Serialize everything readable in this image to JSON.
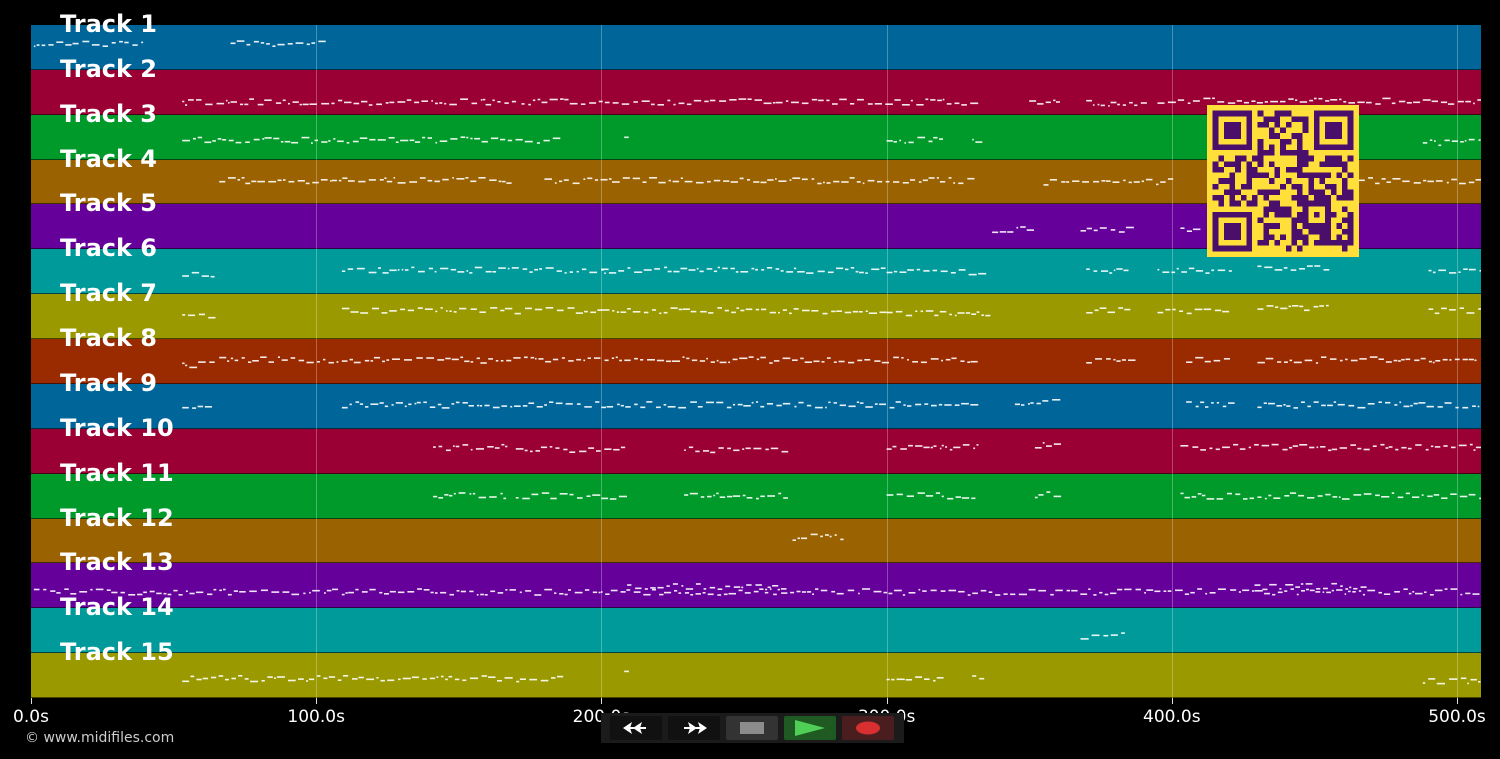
{
  "tracks": [
    {
      "label": "Track 1",
      "color": "#00669a"
    },
    {
      "label": "Track 2",
      "color": "#9a0033"
    },
    {
      "label": "Track 3",
      "color": "#009a2a"
    },
    {
      "label": "Track 4",
      "color": "#9a6200"
    },
    {
      "label": "Track 5",
      "color": "#66009a"
    },
    {
      "label": "Track 6",
      "color": "#009a9a"
    },
    {
      "label": "Track 7",
      "color": "#9a9a00"
    },
    {
      "label": "Track 8",
      "color": "#9a2a00"
    },
    {
      "label": "Track 9",
      "color": "#00669a"
    },
    {
      "label": "Track 10",
      "color": "#9a0033"
    },
    {
      "label": "Track 11",
      "color": "#009a2a"
    },
    {
      "label": "Track 12",
      "color": "#9a6200"
    },
    {
      "label": "Track 13",
      "color": "#66009a"
    },
    {
      "label": "Track 14",
      "color": "#009a9a"
    },
    {
      "label": "Track 15",
      "color": "#9a9a00"
    }
  ],
  "axis": {
    "ticks": [
      {
        "label": "0.0s",
        "seconds": 0
      },
      {
        "label": "100.0s",
        "seconds": 100
      },
      {
        "label": "200.0s",
        "seconds": 200
      },
      {
        "label": "300.0s",
        "seconds": 300
      },
      {
        "label": "400.0s",
        "seconds": 400
      },
      {
        "label": "500.0s",
        "seconds": 500
      }
    ],
    "max_seconds": 508.5
  },
  "copyright": "© www.midifiles.com",
  "transport": {
    "buttons": [
      {
        "name": "rewind-button",
        "icon": "rewind-icon",
        "bg": "#111111",
        "fg": "#ffffff"
      },
      {
        "name": "fast-forward-button",
        "icon": "fast-forward-icon",
        "bg": "#111111",
        "fg": "#ffffff"
      },
      {
        "name": "stop-button",
        "icon": "stop-icon",
        "bg": "#333333",
        "fg": "#888888"
      },
      {
        "name": "play-button",
        "icon": "play-icon",
        "bg": "#1f5a22",
        "fg": "#4fcf55"
      },
      {
        "name": "record-button",
        "icon": "record-icon",
        "bg": "#4a1e1e",
        "fg": "#d83030"
      }
    ]
  },
  "qr": {
    "fg": "#4a0e6b",
    "bg": "#ffe03a"
  }
}
